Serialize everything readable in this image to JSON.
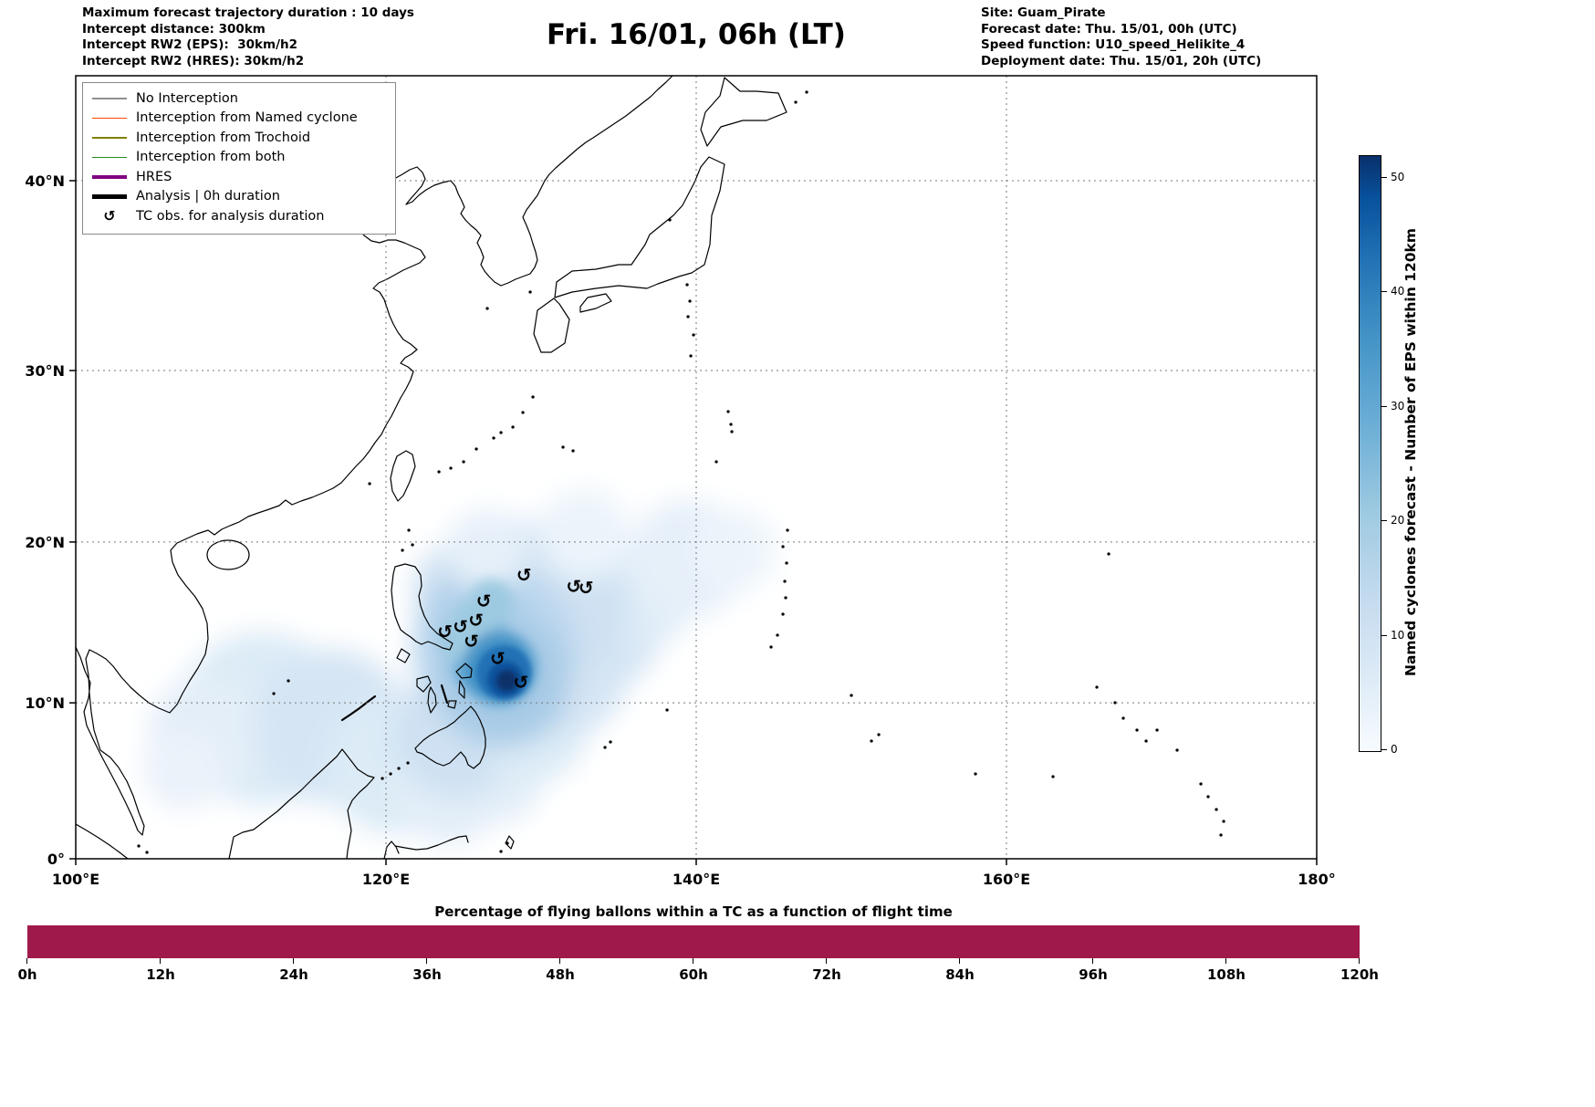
{
  "header": {
    "title": "Fri. 16/01, 06h (LT)",
    "info_left": [
      "Maximum forecast trajectory duration : 10 days",
      "Intercept distance: 300km",
      "Intercept RW2 (EPS):  30km/h2",
      "Intercept RW2 (HRES): 30km/h2"
    ],
    "info_right": [
      "Site: Guam_Pirate",
      "Forecast date: Thu. 15/01, 00h (UTC)",
      "Speed function: U10_speed_Helikite_4",
      "Deployment date: Thu. 15/01, 20h (UTC)"
    ]
  },
  "legend": {
    "tc_symbol": "↺",
    "items": [
      {
        "label": "No Interception",
        "color": "#909090",
        "lw": 1.5
      },
      {
        "label": "Interception from Named cyclone",
        "color": "#ff4500",
        "lw": 1.5
      },
      {
        "label": "Interception from Trochoid",
        "color": "#808000",
        "lw": 1.5
      },
      {
        "label": "Interception from both",
        "color": "#228b22",
        "lw": 1.5
      },
      {
        "label": "HRES",
        "color": "#800080",
        "lw": 4.5
      },
      {
        "label": "Analysis | 0h duration",
        "color": "#000000",
        "lw": 4.5
      },
      {
        "label": "TC obs. for analysis duration",
        "symbol": "↺"
      }
    ]
  },
  "map": {
    "x_ticks": [
      {
        "v": 100,
        "label": "100°E"
      },
      {
        "v": 120,
        "label": "120°E"
      },
      {
        "v": 140,
        "label": "140°E"
      },
      {
        "v": 160,
        "label": "160°E"
      },
      {
        "v": 180,
        "label": "180°"
      }
    ],
    "y_ticks": [
      {
        "v": 0,
        "label": "0°"
      },
      {
        "v": 10,
        "label": "10°N"
      },
      {
        "v": 20,
        "label": "20°N"
      },
      {
        "v": 30,
        "label": "30°N"
      },
      {
        "v": 40,
        "label": "40°N"
      }
    ],
    "grid": {
      "lons": [
        120,
        140,
        160
      ],
      "lats": [
        10,
        20,
        30,
        40
      ]
    }
  },
  "colorbar": {
    "label": "Named cyclones forecast - Number of EPS within 120km",
    "tick_values": [
      0,
      10,
      20,
      30,
      40,
      50
    ],
    "vmin": 0,
    "vmax": 52
  },
  "bottom_chart": {
    "title": "Percentage of flying ballons within a TC as a function of flight time",
    "x_tick_labels": [
      "0h",
      "12h",
      "24h",
      "36h",
      "48h",
      "60h",
      "72h",
      "84h",
      "96h",
      "108h",
      "120h"
    ],
    "bar_color": "#a0194b"
  },
  "chart_data": [
    {
      "type": "heatmap",
      "name": "named-cyclone-eps-density-map",
      "title": "Fri. 16/01, 06h (LT)",
      "projection": "mercator",
      "lon_range": [
        100,
        180
      ],
      "lat_range": [
        0,
        45.3
      ],
      "colorbar_label": "Named cyclones forecast - Number of EPS within 120km",
      "value_range": [
        0,
        52
      ],
      "tc_observations": [
        {
          "lon": 128.9,
          "lat": 18.0
        },
        {
          "lon": 132.1,
          "lat": 17.3
        },
        {
          "lon": 132.9,
          "lat": 17.2
        },
        {
          "lon": 126.3,
          "lat": 16.4
        },
        {
          "lon": 125.8,
          "lat": 15.2
        },
        {
          "lon": 124.8,
          "lat": 14.8
        },
        {
          "lon": 123.8,
          "lat": 14.5
        },
        {
          "lon": 125.5,
          "lat": 13.9
        },
        {
          "lon": 127.2,
          "lat": 12.8
        },
        {
          "lon": 128.7,
          "lat": 11.3
        }
      ],
      "density_blobs": [
        {
          "lon": 110.3,
          "lat": 10.3,
          "r": 55,
          "color": "#e3eef8",
          "layer": "soft"
        },
        {
          "lon": 112.0,
          "lat": 9.0,
          "r": 95,
          "color": "#dcebf6",
          "layer": "soft"
        },
        {
          "lon": 108.5,
          "lat": 8.0,
          "r": 65,
          "color": "#e3eef8",
          "layer": "soft"
        },
        {
          "lon": 107.0,
          "lat": 5.8,
          "r": 45,
          "color": "#eaf2fa",
          "layer": "soft"
        },
        {
          "lon": 116.5,
          "lat": 8.5,
          "r": 85,
          "color": "#d5e5f4",
          "layer": "soft"
        },
        {
          "lon": 120.5,
          "lat": 6.0,
          "r": 75,
          "color": "#dcebf6",
          "layer": "soft"
        },
        {
          "lon": 124.0,
          "lat": 4.5,
          "r": 60,
          "color": "#e3eef8",
          "layer": "soft"
        },
        {
          "lon": 127.0,
          "lat": 5.5,
          "r": 55,
          "color": "#e3eef8",
          "layer": "soft"
        },
        {
          "lon": 124.5,
          "lat": 8.0,
          "r": 70,
          "color": "#cfe1f2",
          "layer": "soft"
        },
        {
          "lon": 129.5,
          "lat": 8.5,
          "r": 60,
          "color": "#dcebf6",
          "layer": "soft"
        },
        {
          "lon": 131.5,
          "lat": 12.0,
          "r": 70,
          "color": "#d5e5f4",
          "layer": "soft"
        },
        {
          "lon": 133.5,
          "lat": 15.0,
          "r": 75,
          "color": "#d5e5f4",
          "layer": "soft"
        },
        {
          "lon": 136.5,
          "lat": 17.0,
          "r": 60,
          "color": "#dfecf7",
          "layer": "soft"
        },
        {
          "lon": 139.5,
          "lat": 19.0,
          "r": 65,
          "color": "#e6f0f9",
          "layer": "soft"
        },
        {
          "lon": 142.5,
          "lat": 19.5,
          "r": 45,
          "color": "#ecf4fb",
          "layer": "soft"
        },
        {
          "lon": 128.5,
          "lat": 17.5,
          "r": 70,
          "color": "#d5e5f4",
          "layer": "soft"
        },
        {
          "lon": 125.0,
          "lat": 17.0,
          "r": 55,
          "color": "#cfe1f2",
          "layer": "soft"
        },
        {
          "lon": 131.0,
          "lat": 16.0,
          "r": 80,
          "color": "#cfe1f2",
          "layer": "soft"
        },
        {
          "lon": 127.0,
          "lat": 13.5,
          "r": 90,
          "color": "#bcd7ee",
          "layer": "soft"
        },
        {
          "lon": 126.0,
          "lat": 15.0,
          "r": 60,
          "color": "#b0d0ea",
          "layer": "soft"
        },
        {
          "lon": 127.5,
          "lat": 11.5,
          "r": 75,
          "color": "#a8cbe6",
          "layer": "soft"
        },
        {
          "lon": 132.8,
          "lat": 20.5,
          "r": 50,
          "color": "#ecf4fb",
          "layer": "soft"
        },
        {
          "lon": 126.5,
          "lat": 19.5,
          "r": 45,
          "color": "#e6f0f9",
          "layer": "soft"
        },
        {
          "lon": 126.6,
          "lat": 12.6,
          "r": 40,
          "color": "#6baed6",
          "layer": "mid"
        },
        {
          "lon": 126.2,
          "lat": 14.3,
          "r": 30,
          "color": "#85bcdf",
          "layer": "mid"
        },
        {
          "lon": 125.7,
          "lat": 15.3,
          "r": 22,
          "color": "#9ecae1",
          "layer": "mid"
        },
        {
          "lon": 124.9,
          "lat": 14.0,
          "r": 25,
          "color": "#9ecae1",
          "layer": "mid"
        },
        {
          "lon": 126.8,
          "lat": 16.3,
          "r": 25,
          "color": "#9ecae1",
          "layer": "mid"
        },
        {
          "lon": 127.3,
          "lat": 12.2,
          "r": 40,
          "color": "#4292c6",
          "layer": "mid"
        },
        {
          "lon": 127.6,
          "lat": 11.9,
          "r": 30,
          "color": "#2171b5",
          "layer": "core"
        },
        {
          "lon": 127.7,
          "lat": 11.5,
          "r": 20,
          "color": "#08519c",
          "layer": "core"
        },
        {
          "lon": 127.8,
          "lat": 11.4,
          "r": 12,
          "color": "#08306b",
          "layer": "core"
        }
      ]
    },
    {
      "type": "bar",
      "name": "balloons-in-tc-percentage",
      "title": "Percentage of flying ballons within a TC as a function of flight time",
      "categories": [
        "0h",
        "12h",
        "24h",
        "36h",
        "48h",
        "60h",
        "72h",
        "84h",
        "96h",
        "108h",
        "120h"
      ],
      "values": [
        100,
        100,
        100,
        100,
        100,
        100,
        100,
        100,
        100,
        100,
        100
      ],
      "unit": "%",
      "ylim": [
        0,
        100
      ],
      "bar_color": "#a0194b"
    }
  ]
}
